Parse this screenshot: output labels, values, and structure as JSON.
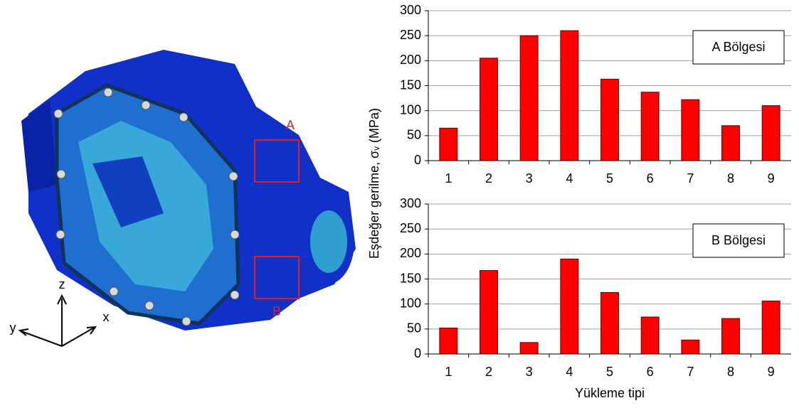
{
  "chart_data": [
    {
      "type": "bar",
      "ylabel": "Eşdeğer gerilme, σᵥ (MPa)",
      "categories": [
        "1",
        "2",
        "3",
        "4",
        "5",
        "6",
        "7",
        "8",
        "9"
      ],
      "series": [
        {
          "name": "A Bölgesi",
          "color": "#ff0000",
          "values": [
            65,
            205,
            250,
            260,
            163,
            137,
            122,
            70,
            110
          ]
        }
      ],
      "ylim": [
        0,
        300
      ],
      "yticks": [
        0,
        50,
        100,
        150,
        200,
        250,
        300
      ],
      "grid": true
    },
    {
      "type": "bar",
      "xlabel": "Yükleme tipi",
      "categories": [
        "1",
        "2",
        "3",
        "4",
        "5",
        "6",
        "7",
        "8",
        "9"
      ],
      "series": [
        {
          "name": "B Bölgesi",
          "color": "#ff0000",
          "values": [
            52,
            167,
            23,
            190,
            123,
            74,
            28,
            71,
            106
          ]
        }
      ],
      "ylim": [
        0,
        300
      ],
      "yticks": [
        0,
        50,
        100,
        150,
        200,
        250,
        300
      ],
      "grid": true
    }
  ],
  "diagram": {
    "region_labels": [
      "A",
      "B"
    ],
    "axis_labels": {
      "x": "x",
      "y": "y",
      "z": "z"
    }
  }
}
